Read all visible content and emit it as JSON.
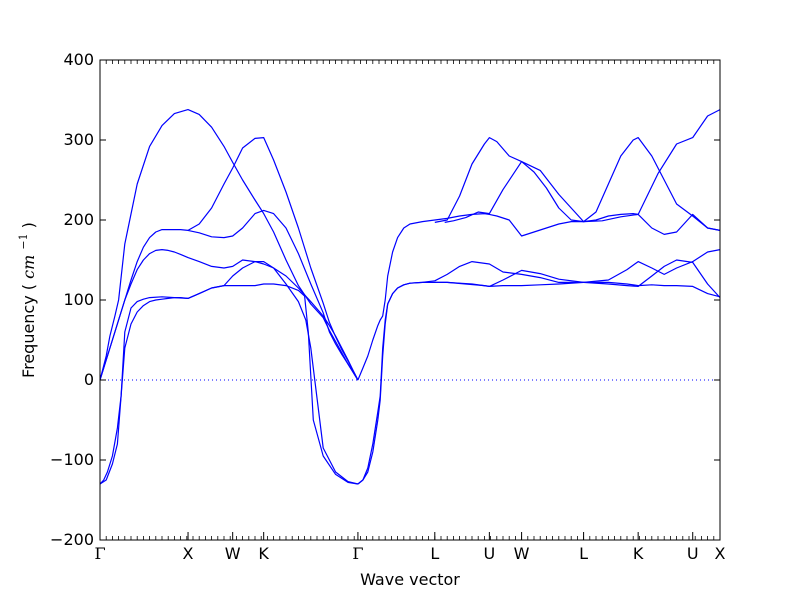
{
  "chart_data": {
    "type": "line",
    "title": "",
    "xlabel": "Wave vector",
    "ylabel": "Frequency",
    "ylabel_unit": "cm",
    "ylabel_unit_exponent": "−1",
    "ylim": [
      -200,
      400
    ],
    "yticks": [
      -200,
      -100,
      0,
      100,
      200,
      300,
      400
    ],
    "ytick_labels": [
      "−200",
      "−100",
      "0",
      "100",
      "200",
      "300",
      "400"
    ],
    "xticks": [
      {
        "label": "Γ",
        "pos": 0.0
      },
      {
        "label": "X",
        "pos": 0.71
      },
      {
        "label": "W",
        "pos": 1.07
      },
      {
        "label": "K",
        "pos": 1.32
      },
      {
        "label": "Γ",
        "pos": 2.08
      },
      {
        "label": "L",
        "pos": 2.7
      },
      {
        "label": "U",
        "pos": 3.14
      },
      {
        "label": "W",
        "pos": 3.4
      },
      {
        "label": "L",
        "pos": 3.9
      },
      {
        "label": "K",
        "pos": 4.34
      },
      {
        "label": "U",
        "pos": 4.78
      },
      {
        "label": "X",
        "pos": 5.0
      }
    ],
    "xlim": [
      0,
      5.0
    ],
    "zero_line": true,
    "line_color": "#0000ff",
    "series": [
      {
        "x": [
          0,
          0.05,
          0.1,
          0.15,
          0.2,
          0.25,
          0.3,
          0.35,
          0.4,
          0.45,
          0.5,
          0.55,
          0.6,
          0.65,
          0.71,
          0.8,
          0.9,
          1.0,
          1.07,
          1.15,
          1.25,
          1.32,
          1.4,
          1.5,
          1.6,
          1.7,
          1.8,
          1.85,
          1.9,
          1.95,
          2.0,
          2.04,
          2.08
        ],
        "y": [
          0,
          25,
          50,
          75,
          100,
          125,
          148,
          166,
          178,
          185,
          188,
          188,
          188,
          188,
          187,
          184,
          179,
          178,
          180,
          190,
          208,
          212,
          208,
          190,
          158,
          120,
          84,
          60,
          45,
          32,
          20,
          10,
          0
        ]
      },
      {
        "x": [
          0,
          0.05,
          0.1,
          0.15,
          0.2,
          0.25,
          0.3,
          0.35,
          0.4,
          0.45,
          0.5,
          0.55,
          0.6,
          0.65,
          0.71,
          0.8,
          0.9,
          1.0,
          1.07,
          1.15,
          1.25,
          1.32,
          1.4,
          1.5,
          1.6,
          1.7,
          1.8,
          1.85,
          1.9,
          1.95,
          2.0,
          2.04,
          2.08
        ],
        "y": [
          0,
          25,
          50,
          75,
          100,
          120,
          138,
          150,
          158,
          162,
          163,
          162,
          160,
          157,
          153,
          148,
          142,
          140,
          142,
          150,
          148,
          145,
          140,
          130,
          115,
          98,
          80,
          68,
          55,
          40,
          25,
          12,
          0
        ]
      },
      {
        "x": [
          0,
          0.03,
          0.06,
          0.1,
          0.14,
          0.17,
          0.2,
          0.25,
          0.3,
          0.35,
          0.4,
          0.45,
          0.5,
          0.55,
          0.6,
          0.65,
          0.71,
          0.8,
          0.9,
          1.0,
          1.07,
          1.15,
          1.25,
          1.32,
          1.4,
          1.5,
          1.6,
          1.65,
          1.68,
          1.72,
          1.8,
          1.9,
          2.0,
          2.08
        ],
        "y": [
          -130,
          -125,
          -115,
          -95,
          -60,
          -20,
          40,
          70,
          85,
          93,
          98,
          100,
          101,
          102,
          103,
          103,
          102,
          108,
          115,
          118,
          118,
          118,
          118,
          120,
          120,
          118,
          112,
          105,
          60,
          -50,
          -95,
          -118,
          -128,
          -130
        ]
      },
      {
        "x": [
          0,
          0.05,
          0.1,
          0.14,
          0.17,
          0.2,
          0.25,
          0.3,
          0.35,
          0.4,
          0.5,
          0.6,
          0.71,
          0.8,
          0.9,
          1.0,
          1.07,
          1.15,
          1.25,
          1.32,
          1.4,
          1.5,
          1.6,
          1.66,
          1.7,
          1.8,
          1.9,
          2.0,
          2.08
        ],
        "y": [
          -130,
          -125,
          -105,
          -80,
          -20,
          60,
          90,
          98,
          101,
          103,
          104,
          103,
          102,
          108,
          115,
          118,
          130,
          140,
          148,
          148,
          140,
          120,
          98,
          75,
          40,
          -85,
          -115,
          -127,
          -130
        ]
      },
      {
        "x": [
          0,
          0.05,
          0.08,
          0.12,
          0.15,
          0.2,
          0.3,
          0.4,
          0.5,
          0.6,
          0.71,
          0.8,
          0.9,
          1.0,
          1.07,
          1.15,
          1.25,
          1.32,
          1.4,
          1.5,
          1.6,
          1.7,
          1.8,
          1.85,
          1.9,
          1.95,
          2.0,
          2.04,
          2.08
        ],
        "y": [
          0,
          30,
          55,
          80,
          100,
          170,
          245,
          292,
          318,
          333,
          338,
          332,
          316,
          292,
          272,
          250,
          225,
          208,
          185,
          150,
          118,
          95,
          78,
          62,
          48,
          34,
          20,
          10,
          0
        ]
      },
      {
        "x": [
          0.71,
          0.8,
          0.9,
          1.0,
          1.07,
          1.15,
          1.25,
          1.32,
          1.4,
          1.5,
          1.6,
          1.7,
          1.8,
          1.85,
          1.9,
          1.95,
          2.0,
          2.04,
          2.08
        ],
        "y": [
          187,
          195,
          215,
          245,
          265,
          290,
          302,
          303,
          275,
          235,
          190,
          140,
          96,
          72,
          54,
          38,
          24,
          12,
          0
        ]
      },
      {
        "x": [
          2.08,
          2.12,
          2.16,
          2.2,
          2.24,
          2.26,
          2.28,
          2.3,
          2.32,
          2.36,
          2.4,
          2.45,
          2.5,
          2.6,
          2.7,
          2.8,
          2.9,
          3.0,
          3.1,
          3.14,
          3.2,
          3.3,
          3.4,
          3.5,
          3.6,
          3.7,
          3.8,
          3.9,
          4.0,
          4.1,
          4.2,
          4.3,
          4.34,
          4.45,
          4.55,
          4.65,
          4.78,
          4.9,
          5.0
        ],
        "y": [
          0,
          15,
          30,
          50,
          68,
          75,
          80,
          100,
          130,
          160,
          178,
          190,
          195,
          198,
          200,
          202,
          205,
          207,
          208,
          207,
          205,
          200,
          180,
          185,
          190,
          195,
          198,
          198,
          200,
          205,
          207,
          208,
          207,
          190,
          182,
          185,
          207,
          190,
          187
        ]
      },
      {
        "x": [
          2.7,
          2.8,
          2.9,
          3.0,
          3.1,
          3.14,
          3.2,
          3.3,
          3.4,
          3.5,
          3.6,
          3.7,
          3.8,
          3.9,
          4.0,
          4.1,
          4.2,
          4.3,
          4.34,
          4.45,
          4.55,
          4.65,
          4.78,
          4.9,
          5.0
        ],
        "y": [
          197,
          200,
          230,
          270,
          295,
          303,
          298,
          280,
          273,
          260,
          240,
          215,
          200,
          198,
          210,
          245,
          280,
          300,
          303,
          280,
          250,
          220,
          205,
          190,
          187
        ]
      },
      {
        "x": [
          2.78,
          2.85,
          2.95,
          3.05,
          3.14,
          3.25,
          3.4,
          3.55,
          3.7,
          3.9,
          4.05,
          4.2,
          4.34,
          4.5,
          4.65,
          4.78,
          4.9,
          5.0
        ],
        "y": [
          197,
          199,
          203,
          210,
          208,
          238,
          273,
          262,
          232,
          198,
          199,
          204,
          207,
          258,
          295,
          303,
          330,
          338
        ]
      },
      {
        "x": [
          2.08,
          2.12,
          2.16,
          2.2,
          2.24,
          2.26,
          2.28,
          2.3,
          2.32,
          2.36,
          2.4,
          2.45,
          2.5,
          2.6,
          2.7,
          2.8,
          2.9,
          3.0,
          3.14,
          3.25,
          3.4,
          3.55,
          3.7,
          3.9,
          4.1,
          4.25,
          4.34,
          4.45,
          4.55,
          4.65,
          4.78,
          4.9,
          5.0
        ],
        "y": [
          -130,
          -125,
          -110,
          -80,
          -40,
          -20,
          40,
          75,
          95,
          108,
          115,
          119,
          121,
          122,
          122,
          122,
          121,
          120,
          117,
          118,
          118,
          119,
          120,
          122,
          122,
          120,
          118,
          119,
          118,
          118,
          117,
          108,
          104
        ]
      },
      {
        "x": [
          2.08,
          2.12,
          2.16,
          2.2,
          2.24,
          2.26,
          2.28,
          2.3,
          2.32,
          2.36,
          2.4,
          2.45,
          2.5,
          2.6,
          2.7,
          2.8,
          2.9,
          3.0,
          3.14,
          3.25,
          3.4,
          3.55,
          3.7,
          3.9,
          4.1,
          4.25,
          4.34,
          4.45,
          4.55,
          4.65,
          4.78,
          4.9,
          5.0
        ],
        "y": [
          -130,
          -125,
          -115,
          -90,
          -50,
          -25,
          30,
          70,
          95,
          108,
          115,
          119,
          121,
          122,
          124,
          132,
          142,
          148,
          145,
          135,
          132,
          128,
          122,
          122,
          125,
          138,
          148,
          140,
          132,
          140,
          148,
          160,
          163
        ]
      },
      {
        "x": [
          2.7,
          2.8,
          2.95,
          3.1,
          3.14,
          3.25,
          3.4,
          3.55,
          3.7,
          3.9,
          4.1,
          4.25,
          4.34,
          4.45,
          4.55,
          4.65,
          4.78,
          4.9,
          5.0
        ],
        "y": [
          122,
          122,
          120,
          118,
          117,
          125,
          137,
          133,
          126,
          122,
          120,
          118,
          117,
          130,
          142,
          150,
          147,
          120,
          103
        ]
      }
    ]
  }
}
